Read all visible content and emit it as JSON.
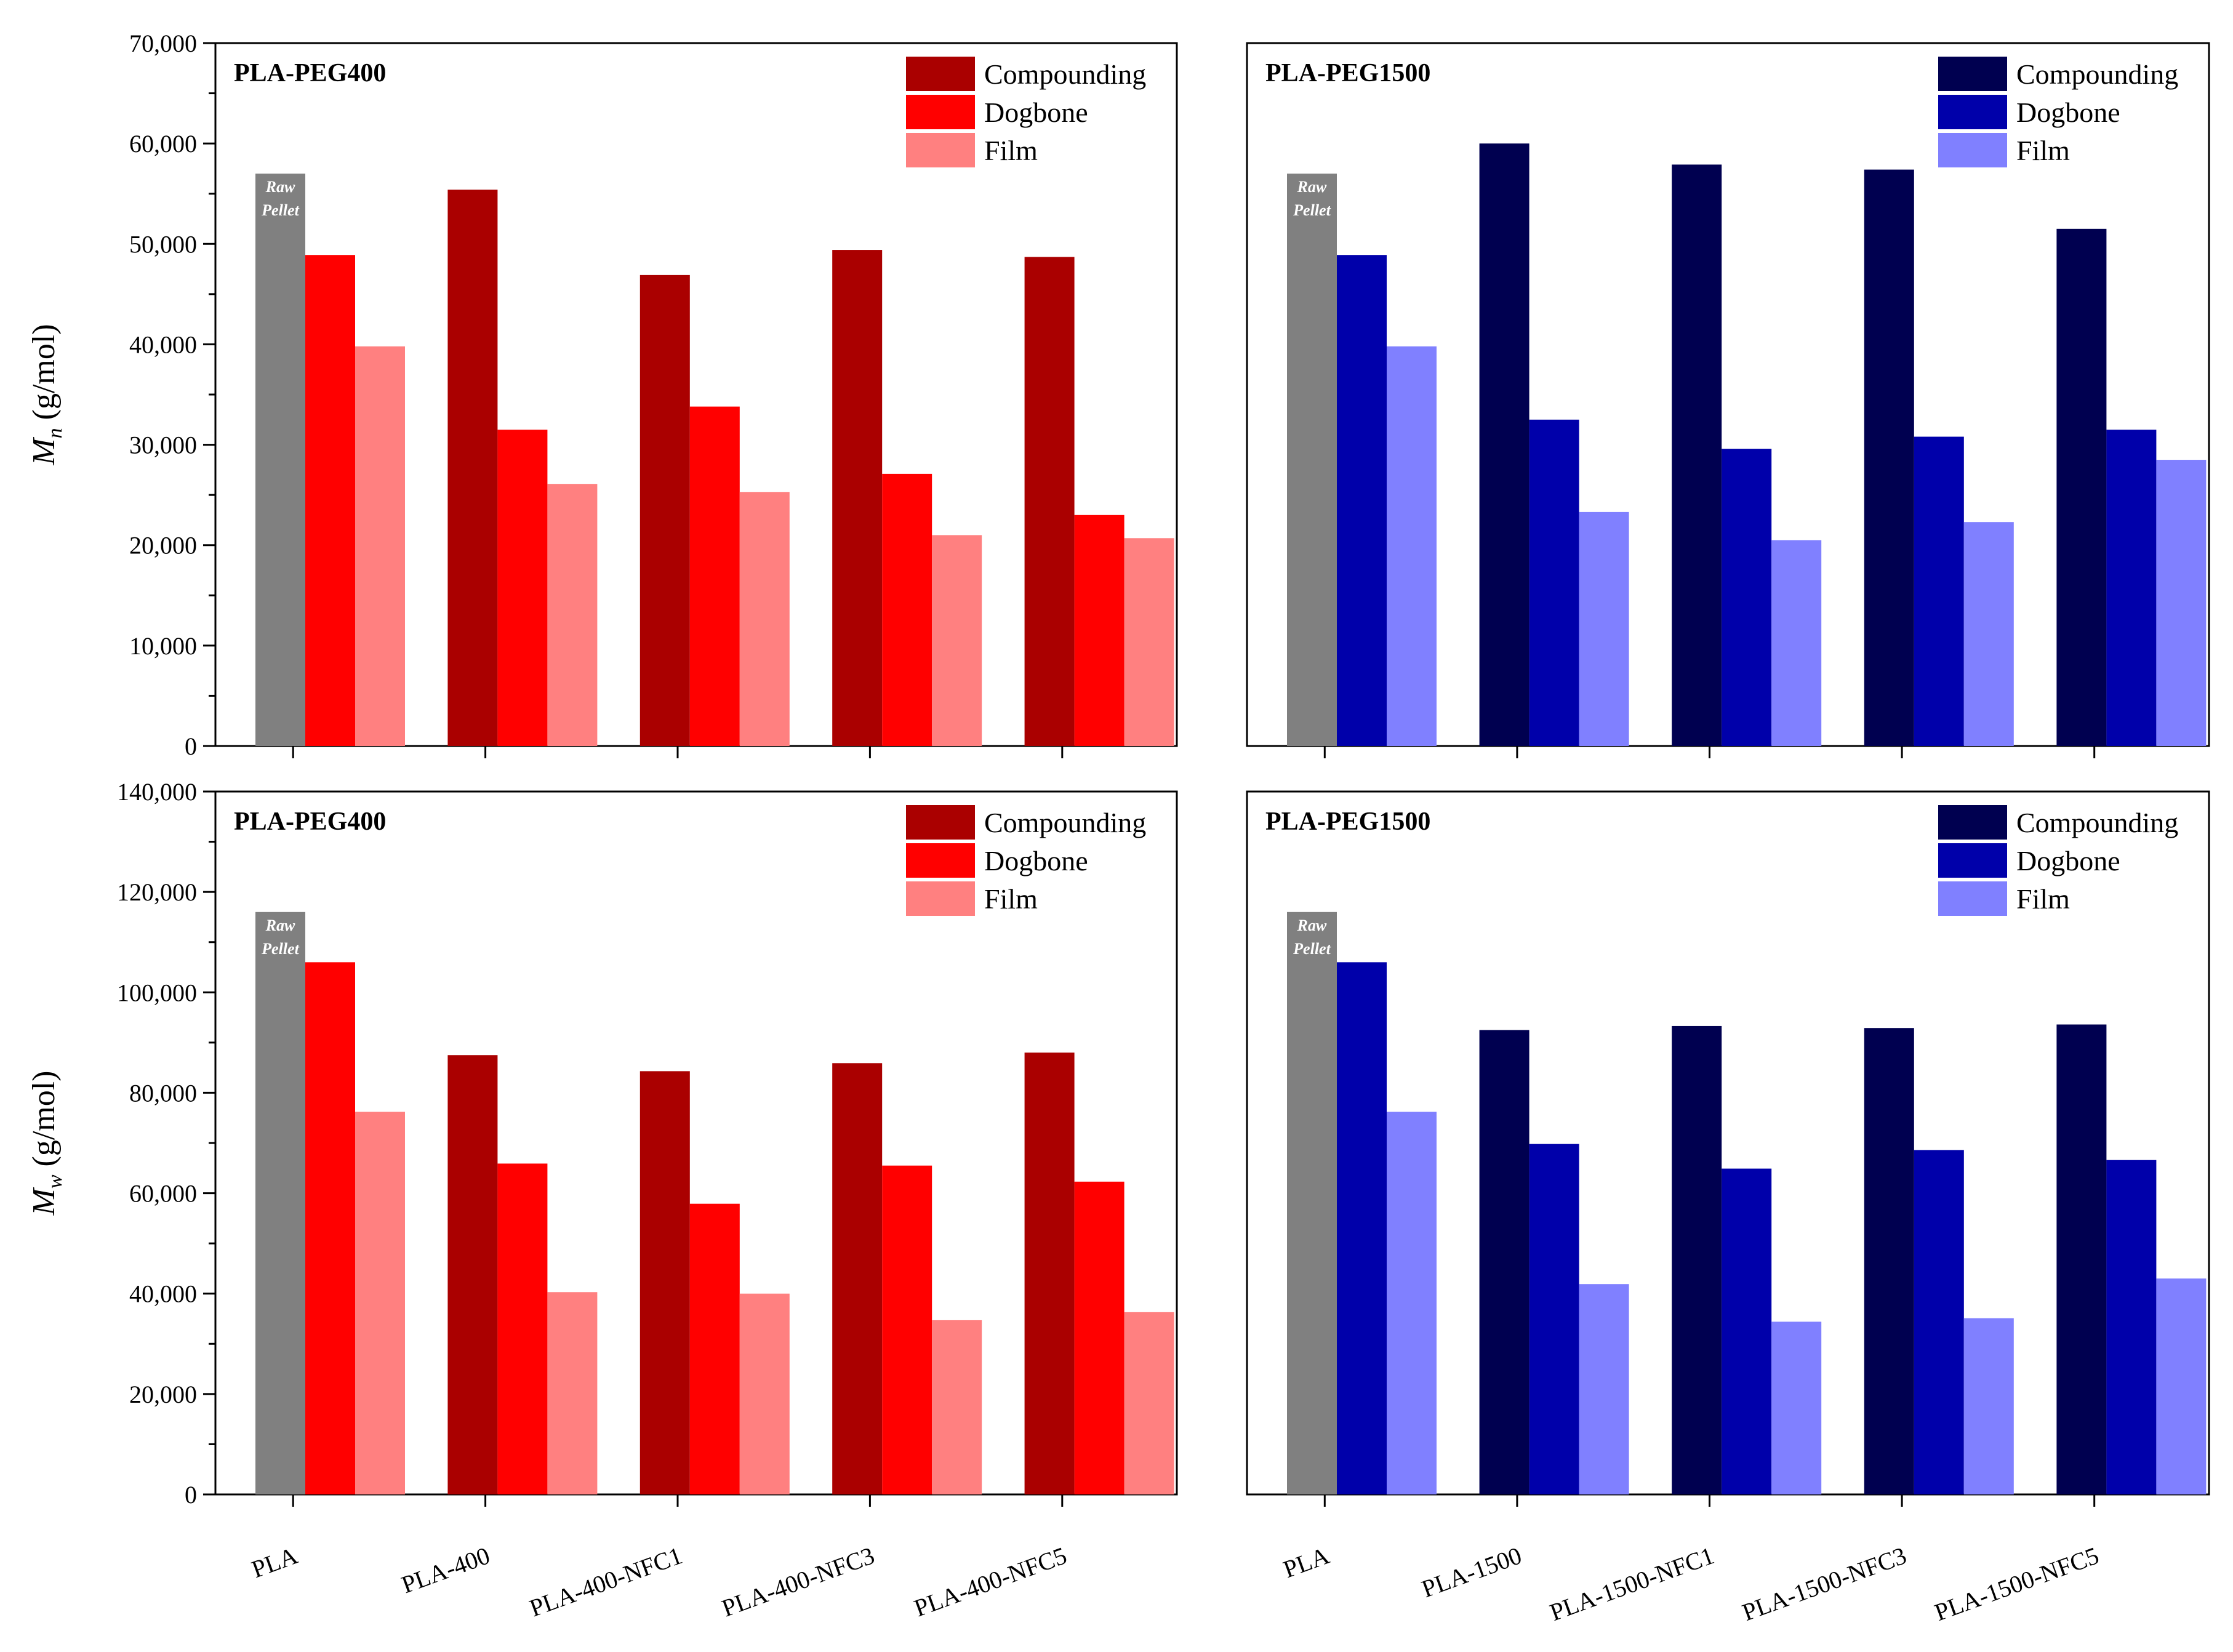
{
  "chart_data": [
    {
      "type": "bar",
      "title": "PLA-PEG400",
      "ylabel": "M",
      "ylabel_sub": "n",
      "ylabel_unit": " (g/mol)",
      "ylim": [
        0,
        70000
      ],
      "yticks": [
        "0",
        "10,000",
        "20,000",
        "30,000",
        "40,000",
        "50,000",
        "60,000",
        "70,000"
      ],
      "categories": [
        "PLA",
        "PLA-400",
        "PLA-400-NFC1",
        "PLA-400-NFC3",
        "PLA-400-NFC5"
      ],
      "legend_position": "top-right",
      "series": [
        {
          "name": "Compounding",
          "color": "#aa0000",
          "values": [
            57000,
            55400,
            46900,
            49400,
            48700
          ]
        },
        {
          "name": "Dogbone",
          "color": "#ff0000",
          "values": [
            48900,
            31500,
            33800,
            27100,
            23000
          ]
        },
        {
          "name": "Film",
          "color": "#ff8080",
          "values": [
            39800,
            26100,
            25300,
            21000,
            20700
          ]
        }
      ],
      "raw_pellet": {
        "label_line1": "Raw",
        "label_line2": "Pellet",
        "color": "#808080"
      }
    },
    {
      "type": "bar",
      "title": "PLA-PEG1500",
      "ylim": [
        0,
        70000
      ],
      "categories": [
        "PLA",
        "PLA-1500",
        "PLA-1500-NFC1",
        "PLA-1500-NFC3",
        "PLA-1500-NFC5"
      ],
      "legend_position": "top-right",
      "series": [
        {
          "name": "Compounding",
          "color": "#000050",
          "values": [
            57000,
            60000,
            57900,
            57400,
            51500
          ]
        },
        {
          "name": "Dogbone",
          "color": "#0000aa",
          "values": [
            48900,
            32500,
            29600,
            30800,
            31500
          ]
        },
        {
          "name": "Film",
          "color": "#8080ff",
          "values": [
            39800,
            23300,
            20500,
            22300,
            28500
          ]
        }
      ],
      "raw_pellet": {
        "label_line1": "Raw",
        "label_line2": "Pellet",
        "color": "#808080"
      }
    },
    {
      "type": "bar",
      "title": "PLA-PEG400",
      "ylabel": "M",
      "ylabel_sub": "w",
      "ylabel_unit": " (g/mol)",
      "ylim": [
        0,
        140000
      ],
      "yticks": [
        "0",
        "20,000",
        "40,000",
        "60,000",
        "80,000",
        "100,000",
        "120,000",
        "140,000"
      ],
      "categories": [
        "PLA",
        "PLA-400",
        "PLA-400-NFC1",
        "PLA-400-NFC3",
        "PLA-400-NFC5"
      ],
      "legend_position": "top-right",
      "series": [
        {
          "name": "Compounding",
          "color": "#aa0000",
          "values": [
            116000,
            87500,
            84300,
            85900,
            88000
          ]
        },
        {
          "name": "Dogbone",
          "color": "#ff0000",
          "values": [
            106000,
            65900,
            57900,
            65500,
            62300
          ]
        },
        {
          "name": "Film",
          "color": "#ff8080",
          "values": [
            76200,
            40300,
            40000,
            34700,
            36300
          ]
        }
      ],
      "raw_pellet": {
        "label_line1": "Raw",
        "label_line2": "Pellet",
        "color": "#808080"
      }
    },
    {
      "type": "bar",
      "title": "PLA-PEG1500",
      "ylim": [
        0,
        140000
      ],
      "categories": [
        "PLA",
        "PLA-1500",
        "PLA-1500-NFC1",
        "PLA-1500-NFC3",
        "PLA-1500-NFC5"
      ],
      "legend_position": "top-right",
      "series": [
        {
          "name": "Compounding",
          "color": "#000050",
          "values": [
            116000,
            92500,
            93300,
            92900,
            93600
          ]
        },
        {
          "name": "Dogbone",
          "color": "#0000aa",
          "values": [
            106000,
            69800,
            64900,
            68600,
            66600
          ]
        },
        {
          "name": "Film",
          "color": "#8080ff",
          "values": [
            76200,
            41900,
            34400,
            35100,
            43000
          ]
        }
      ],
      "raw_pellet": {
        "label_line1": "Raw",
        "label_line2": "Pellet",
        "color": "#808080"
      }
    }
  ]
}
